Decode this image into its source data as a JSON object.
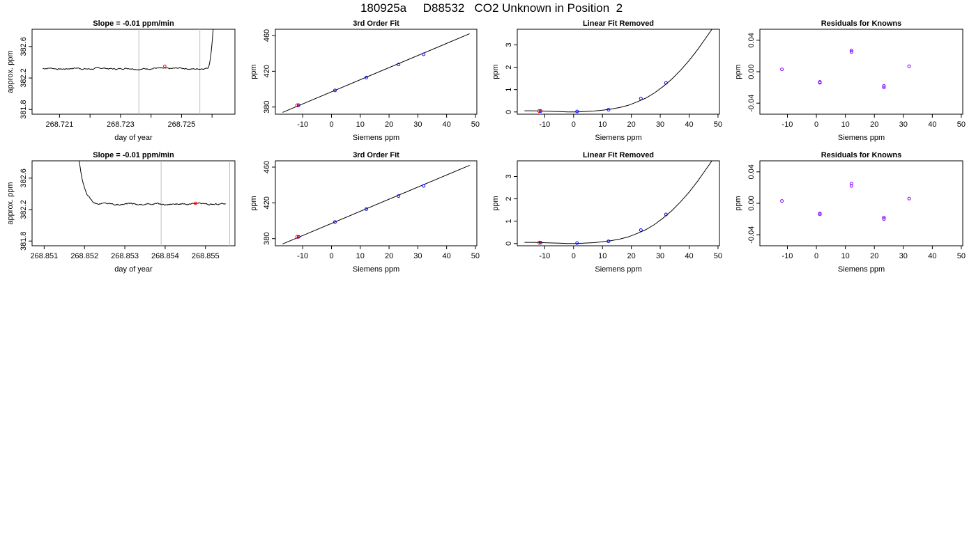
{
  "figure_title": "180925a     D88532   CO2 Unknown in Position  2",
  "colors": {
    "axis": "#000000",
    "trace": "#000000",
    "marker_known": "#0000ff",
    "marker_unknown": "#ff0000",
    "residual_marker": "#8000ff",
    "vline": "#bebebe"
  },
  "chart_data": [
    {
      "type": "line",
      "title": "Slope =  -0.01  ppm/min",
      "xlabel": "day of year",
      "ylabel": "approx. ppm",
      "xlim": [
        268.7201,
        268.72675
      ],
      "ylim": [
        381.74,
        382.82
      ],
      "xticks": [
        268.721,
        268.722,
        268.723,
        268.724,
        268.725,
        268.726
      ],
      "xtick_labels": [
        "268.721",
        "",
        "268.723",
        "",
        "268.725",
        ""
      ],
      "yticks": [
        381.8,
        382.2,
        382.6
      ],
      "ytick_labels": [
        "381.8",
        "382.2",
        "382.6"
      ],
      "vlines": [
        268.7236,
        268.7256
      ],
      "trace": {
        "x_start": 268.72045,
        "x_end": 268.72595,
        "base": 382.32,
        "noise": 0.012,
        "rise_start": 268.72585,
        "rise_end": 268.72605,
        "rise_to": 382.9
      },
      "unknown_point": {
        "x": 268.72445,
        "y": 382.35
      }
    },
    {
      "type": "scatter",
      "title": "3rd Order Fit",
      "xlabel": "Siemens ppm",
      "ylabel": "ppm",
      "xlim": [
        -19.5,
        50.5
      ],
      "ylim": [
        372,
        467
      ],
      "xticks": [
        -10,
        0,
        10,
        20,
        30,
        40,
        50
      ],
      "yticks": [
        380,
        420,
        460
      ],
      "fit": {
        "x": [
          -17,
          48
        ],
        "y": [
          374,
          462
        ]
      },
      "points_known": {
        "x": [
          1.2,
          12.1,
          23.3,
          32.0
        ],
        "y": [
          398.6,
          413.0,
          427.6,
          439.0
        ]
      },
      "points_unknown": {
        "x": [
          -11.9
        ],
        "y": [
          382.0
        ]
      }
    },
    {
      "type": "scatter",
      "title": "Linear Fit Removed",
      "xlabel": "Siemens ppm",
      "ylabel": "ppm",
      "xlim": [
        -19.5,
        50.5
      ],
      "ylim": [
        -0.1,
        3.7
      ],
      "xticks": [
        -10,
        0,
        10,
        20,
        30,
        40,
        50
      ],
      "yticks": [
        0,
        1,
        2,
        3
      ],
      "curve": {
        "x": [
          -17,
          -14,
          -11,
          -8,
          -5,
          -2,
          1,
          4,
          7,
          10,
          13,
          16,
          19,
          22,
          25,
          28,
          31,
          34,
          37,
          40,
          43,
          46,
          48
        ],
        "y": [
          0.05,
          0.05,
          0.04,
          0.03,
          0.015,
          0.0,
          0.0,
          0.02,
          0.04,
          0.08,
          0.13,
          0.2,
          0.3,
          0.45,
          0.62,
          0.85,
          1.14,
          1.47,
          1.86,
          2.3,
          2.8,
          3.35,
          3.72
        ]
      },
      "points_known": {
        "x": [
          1.2,
          12.1,
          23.3,
          32.0
        ],
        "y": [
          0.02,
          0.1,
          0.6,
          1.3
        ]
      },
      "points_unknown": {
        "x": [
          -11.9
        ],
        "y": [
          0.04
        ]
      }
    },
    {
      "type": "scatter",
      "title": "Residuals for Knowns",
      "xlabel": "Siemens ppm",
      "ylabel": "ppm",
      "xlim": [
        -19.5,
        50.5
      ],
      "ylim": [
        -0.054,
        0.054
      ],
      "xticks": [
        -10,
        0,
        10,
        20,
        30,
        40,
        50
      ],
      "yticks": [
        -0.04,
        0.0,
        0.04
      ],
      "ytick_labels": [
        "-0.04",
        "0.00",
        "0.04"
      ],
      "points": {
        "x": [
          -11.9,
          1.2,
          1.2,
          12.1,
          12.1,
          23.3,
          23.3,
          32.0
        ],
        "y": [
          0.003,
          -0.013,
          -0.014,
          0.025,
          0.027,
          -0.018,
          -0.02,
          0.007
        ]
      }
    },
    {
      "type": "line",
      "title": "Slope =  -0.01  ppm/min",
      "xlabel": "day of year",
      "ylabel": "approx. ppm",
      "xlim": [
        268.8507,
        268.85573
      ],
      "ylim": [
        381.74,
        382.82
      ],
      "xticks": [
        268.851,
        268.852,
        268.853,
        268.854,
        268.855
      ],
      "xtick_labels": [
        "268.851",
        "268.852",
        "268.853",
        "268.854",
        "268.855"
      ],
      "yticks": [
        381.8,
        382.2,
        382.6
      ],
      "ytick_labels": [
        "381.8",
        "382.2",
        "382.6"
      ],
      "vlines": [
        268.8539,
        268.8556
      ],
      "trace": {
        "x_start": 268.85185,
        "x_end": 268.8555,
        "base": 382.27,
        "noise": 0.012,
        "decay_from": 382.9,
        "decay_tau": 0.00013
      },
      "unknown_point": {
        "x": 268.85475,
        "y": 382.28
      }
    },
    {
      "type": "scatter",
      "title": "3rd Order Fit",
      "xlabel": "Siemens ppm",
      "ylabel": "ppm",
      "xlim": [
        -19.5,
        50.5
      ],
      "ylim": [
        372,
        467
      ],
      "xticks": [
        -10,
        0,
        10,
        20,
        30,
        40,
        50
      ],
      "yticks": [
        380,
        420,
        460
      ],
      "fit": {
        "x": [
          -17,
          48
        ],
        "y": [
          374,
          462
        ]
      },
      "points_known": {
        "x": [
          1.2,
          12.1,
          23.3,
          32.0
        ],
        "y": [
          398.6,
          413.0,
          427.6,
          439.0
        ]
      },
      "points_unknown": {
        "x": [
          -11.9
        ],
        "y": [
          382.0
        ]
      }
    },
    {
      "type": "scatter",
      "title": "Linear Fit Removed",
      "xlabel": "Siemens ppm",
      "ylabel": "ppm",
      "xlim": [
        -19.5,
        50.5
      ],
      "ylim": [
        -0.1,
        3.7
      ],
      "xticks": [
        -10,
        0,
        10,
        20,
        30,
        40,
        50
      ],
      "yticks": [
        0,
        1,
        2,
        3
      ],
      "curve": {
        "x": [
          -17,
          -14,
          -11,
          -8,
          -5,
          -2,
          1,
          4,
          7,
          10,
          13,
          16,
          19,
          22,
          25,
          28,
          31,
          34,
          37,
          40,
          43,
          46,
          48
        ],
        "y": [
          0.05,
          0.05,
          0.04,
          0.03,
          0.015,
          0.0,
          0.0,
          0.02,
          0.04,
          0.08,
          0.13,
          0.2,
          0.3,
          0.45,
          0.62,
          0.85,
          1.14,
          1.47,
          1.86,
          2.3,
          2.8,
          3.35,
          3.72
        ]
      },
      "points_known": {
        "x": [
          1.2,
          12.1,
          23.3,
          32.0
        ],
        "y": [
          0.02,
          0.1,
          0.6,
          1.3
        ]
      },
      "points_unknown": {
        "x": [
          -11.9
        ],
        "y": [
          0.04
        ]
      }
    },
    {
      "type": "scatter",
      "title": "Residuals for Knowns",
      "xlabel": "Siemens ppm",
      "ylabel": "ppm",
      "xlim": [
        -19.5,
        50.5
      ],
      "ylim": [
        -0.054,
        0.054
      ],
      "xticks": [
        -10,
        0,
        10,
        20,
        30,
        40,
        50
      ],
      "yticks": [
        -0.04,
        0.0,
        0.04
      ],
      "ytick_labels": [
        "-0.04",
        "0.00",
        "0.04"
      ],
      "points": {
        "x": [
          -11.9,
          1.2,
          1.2,
          12.1,
          12.1,
          23.3,
          23.3,
          32.0
        ],
        "y": [
          0.003,
          -0.013,
          -0.014,
          0.025,
          0.022,
          -0.018,
          -0.02,
          0.006
        ]
      }
    }
  ]
}
